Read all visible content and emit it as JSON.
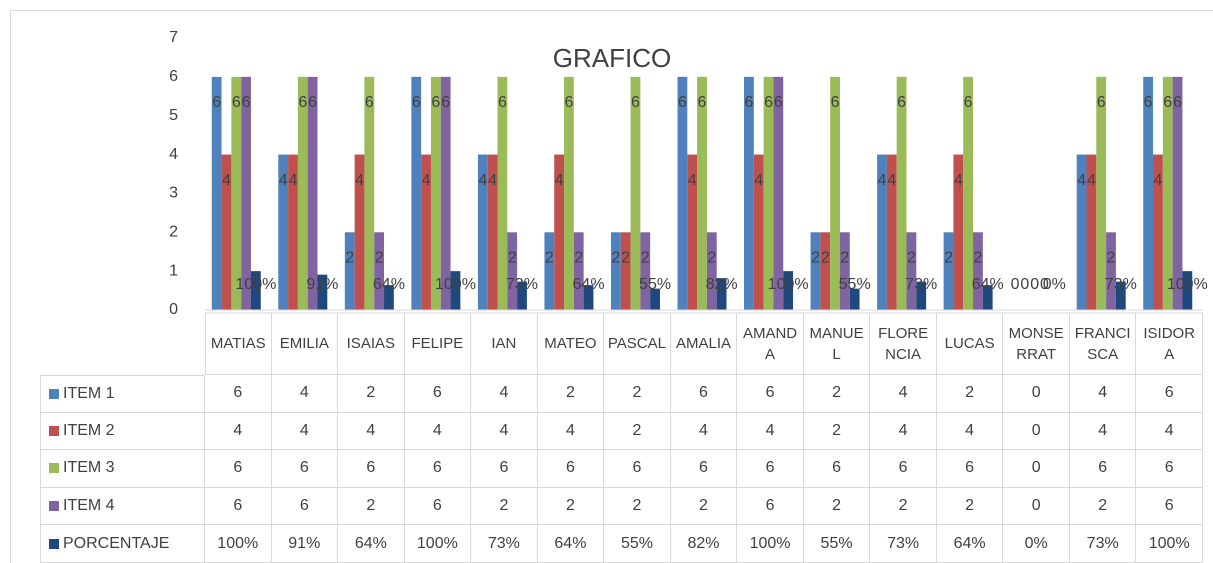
{
  "chart_data": {
    "type": "bar",
    "title": "GRAFICO",
    "categories": [
      "MATIAS",
      "EMILIA",
      "ISAIAS",
      "FELIPE",
      "IAN",
      "MATEO",
      "PASCAL",
      "AMALIA",
      "AMANDA",
      "MANUEL",
      "FLORENCIA",
      "LUCAS",
      "MONSERRAT",
      "FRANCISCA",
      "ISIDORA"
    ],
    "series": [
      {
        "name": "ITEM 1",
        "color": "#4f81bd",
        "values": [
          6,
          4,
          2,
          6,
          4,
          2,
          2,
          6,
          6,
          2,
          4,
          2,
          0,
          4,
          6
        ]
      },
      {
        "name": "ITEM 2",
        "color": "#c0504d",
        "values": [
          4,
          4,
          4,
          4,
          4,
          4,
          2,
          4,
          4,
          2,
          4,
          4,
          0,
          4,
          4
        ]
      },
      {
        "name": "ITEM 3",
        "color": "#9bbb59",
        "values": [
          6,
          6,
          6,
          6,
          6,
          6,
          6,
          6,
          6,
          6,
          6,
          6,
          0,
          6,
          6
        ]
      },
      {
        "name": "ITEM 4",
        "color": "#8064a2",
        "values": [
          6,
          6,
          2,
          6,
          2,
          2,
          2,
          2,
          6,
          2,
          2,
          2,
          0,
          2,
          6
        ]
      },
      {
        "name": "PORCENTAJE",
        "color": "#1f497d",
        "values": [
          1,
          0.91,
          0.64,
          1,
          0.73,
          0.64,
          0.55,
          0.82,
          1,
          0.55,
          0.73,
          0.64,
          0,
          0.73,
          1
        ],
        "value_labels": [
          "100%",
          "91%",
          "64%",
          "100%",
          "73%",
          "64%",
          "55%",
          "82%",
          "100%",
          "55%",
          "73%",
          "64%",
          "0%",
          "73%",
          "100%"
        ]
      }
    ],
    "ylim": [
      0,
      7
    ],
    "yticks": [
      0,
      1,
      2,
      3,
      4,
      5,
      6,
      7
    ],
    "grid": false
  }
}
